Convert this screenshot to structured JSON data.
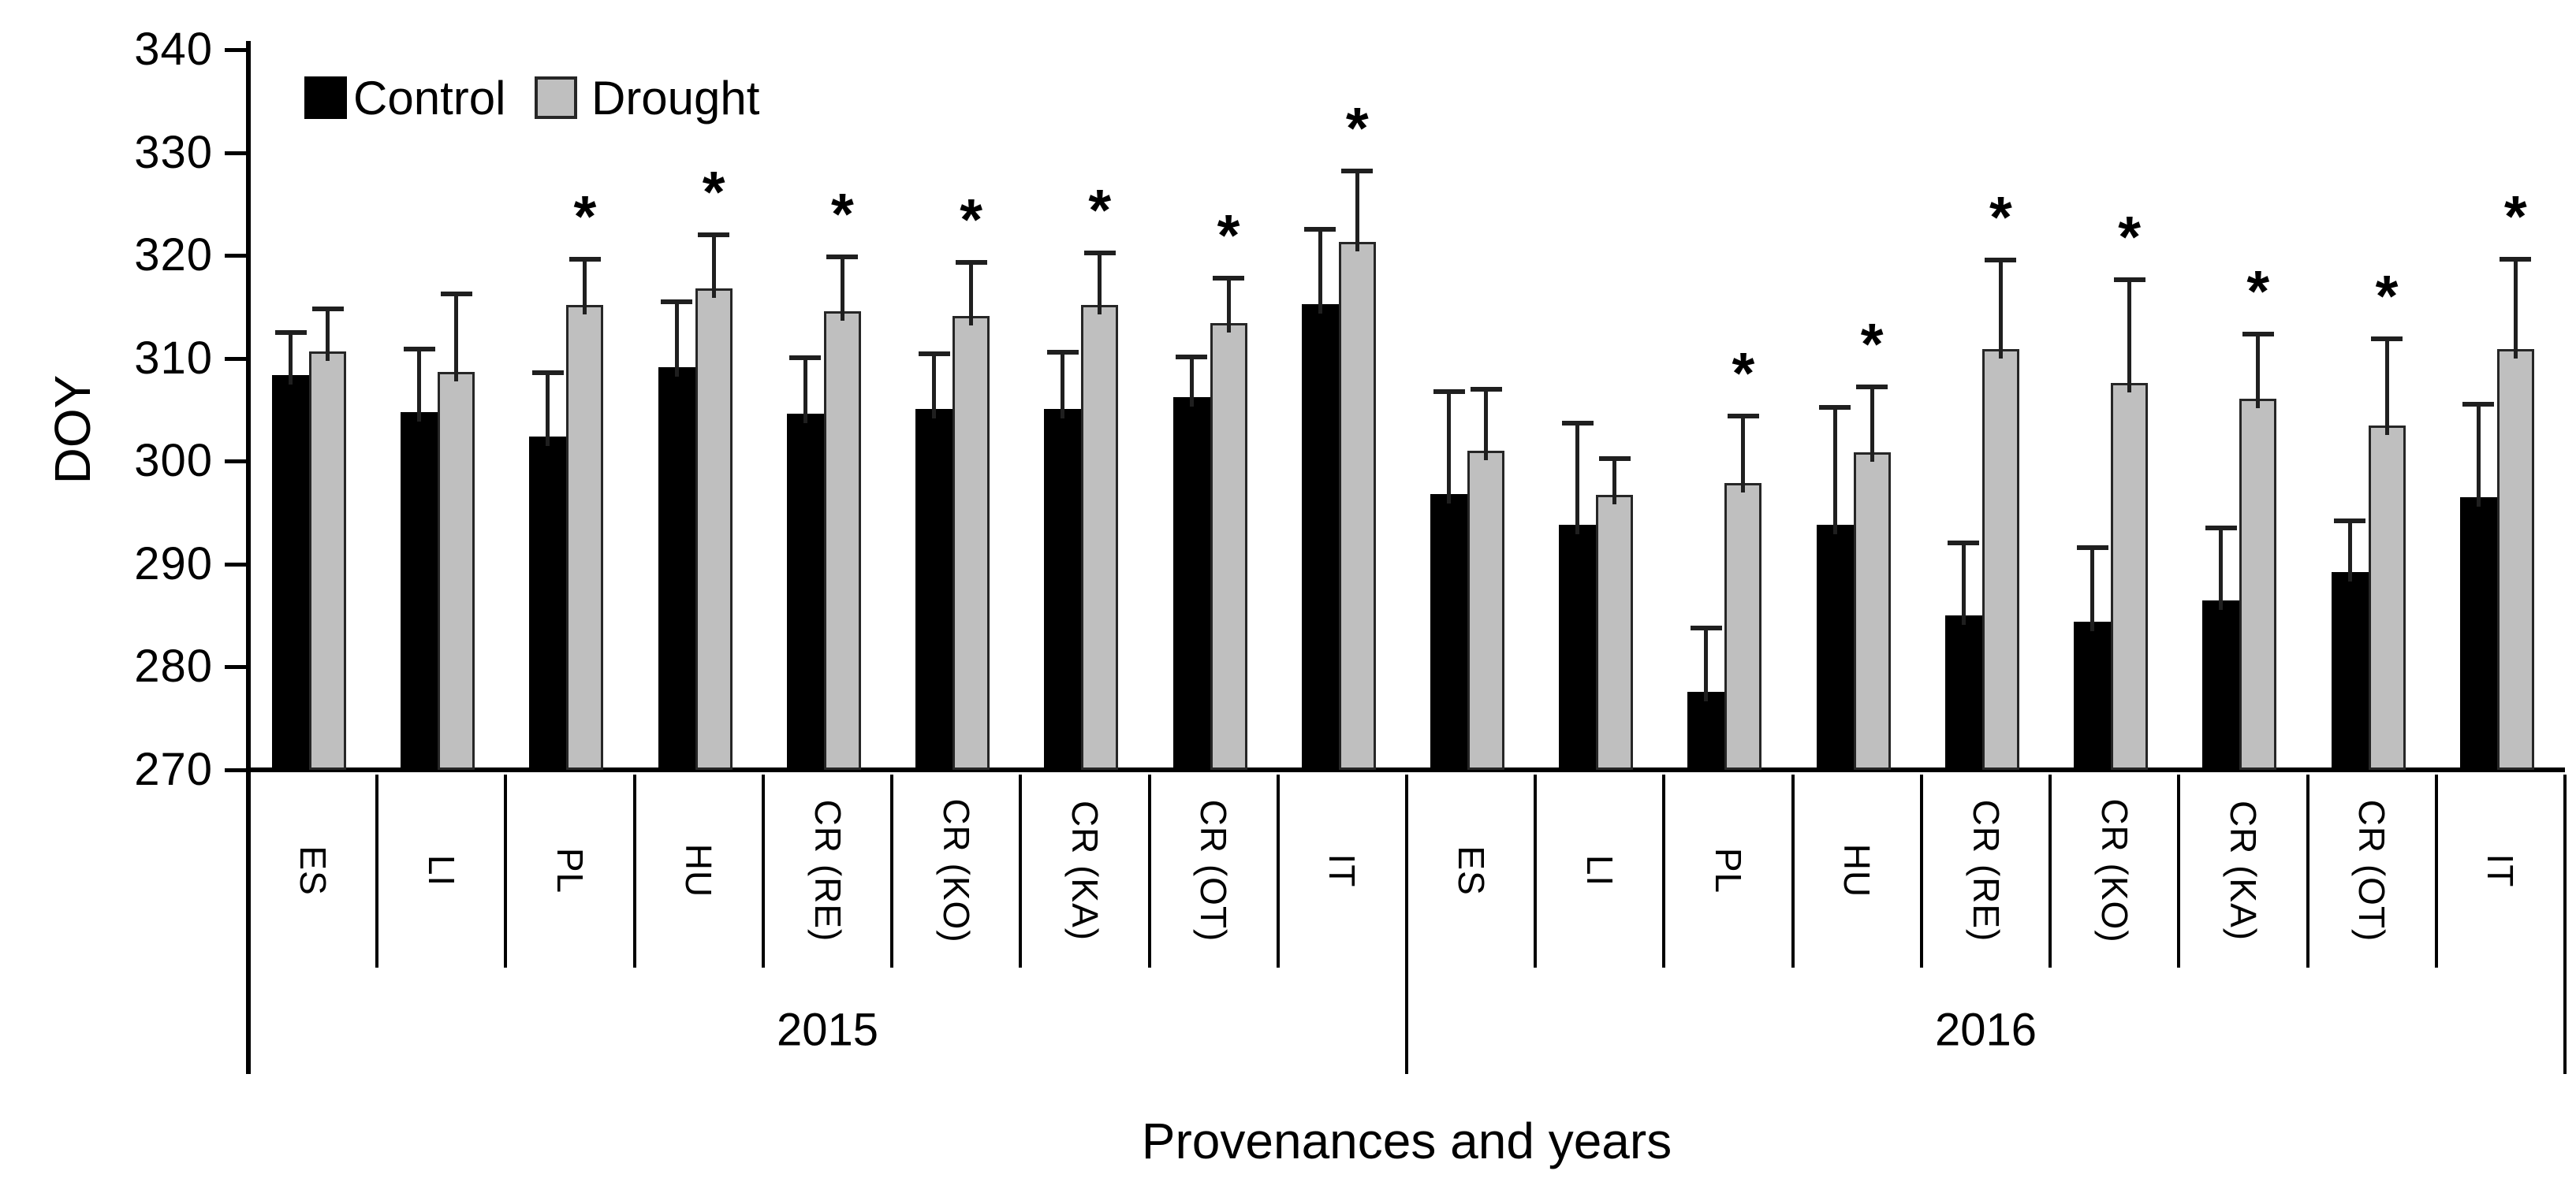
{
  "chart_data": {
    "type": "bar",
    "title": "",
    "ylabel": "DOY",
    "xlabel": "Provenances and years",
    "ylim": [
      270,
      340
    ],
    "yticks": [
      270,
      280,
      290,
      300,
      310,
      320,
      330,
      340
    ],
    "grid": false,
    "legend_position": "top-left",
    "sig_marker": "*",
    "legend": [
      {
        "name": "Control",
        "color": "#000000"
      },
      {
        "name": "Drought",
        "color": "#bfbfbf"
      }
    ],
    "years": [
      {
        "label": "2015"
      },
      {
        "label": "2016"
      }
    ],
    "categories_per_year": [
      "ES",
      "LI",
      "PL",
      "HU",
      "CR (RE)",
      "CR (KO)",
      "CR (KA)",
      "CR (OT)",
      "IT"
    ],
    "series": [
      {
        "name": "Control",
        "color": "#000000"
      },
      {
        "name": "Drought",
        "color": "#bfbfbf"
      }
    ],
    "groups": [
      {
        "year": "2015",
        "label": "ES",
        "control": 308.4,
        "control_err": 4.2,
        "drought": 310.7,
        "drought_err": 4.2,
        "significant": false
      },
      {
        "year": "2015",
        "label": "LI",
        "control": 304.8,
        "control_err": 6.2,
        "drought": 308.7,
        "drought_err": 7.6,
        "significant": false
      },
      {
        "year": "2015",
        "label": "PL",
        "control": 302.4,
        "control_err": 6.3,
        "drought": 315.2,
        "drought_err": 4.5,
        "significant": true
      },
      {
        "year": "2015",
        "label": "HU",
        "control": 309.1,
        "control_err": 6.5,
        "drought": 316.8,
        "drought_err": 5.3,
        "significant": true
      },
      {
        "year": "2015",
        "label": "CR (RE)",
        "control": 304.6,
        "control_err": 5.5,
        "drought": 314.6,
        "drought_err": 5.3,
        "significant": true
      },
      {
        "year": "2015",
        "label": "CR (KO)",
        "control": 305.1,
        "control_err": 5.4,
        "drought": 314.1,
        "drought_err": 5.3,
        "significant": true
      },
      {
        "year": "2015",
        "label": "CR (KA)",
        "control": 305.1,
        "control_err": 5.6,
        "drought": 315.2,
        "drought_err": 5.1,
        "significant": true
      },
      {
        "year": "2015",
        "label": "CR (OT)",
        "control": 306.2,
        "control_err": 4.0,
        "drought": 313.4,
        "drought_err": 4.5,
        "significant": true
      },
      {
        "year": "2015",
        "label": "IT",
        "control": 315.3,
        "control_err": 7.3,
        "drought": 321.3,
        "drought_err": 7.0,
        "significant": true
      },
      {
        "year": "2016",
        "label": "ES",
        "control": 296.8,
        "control_err": 10.0,
        "drought": 301.0,
        "drought_err": 6.1,
        "significant": false
      },
      {
        "year": "2016",
        "label": "LI",
        "control": 293.8,
        "control_err": 10.0,
        "drought": 296.7,
        "drought_err": 3.6,
        "significant": false
      },
      {
        "year": "2016",
        "label": "PL",
        "control": 277.6,
        "control_err": 6.3,
        "drought": 297.9,
        "drought_err": 6.6,
        "significant": true
      },
      {
        "year": "2016",
        "label": "HU",
        "control": 293.8,
        "control_err": 11.5,
        "drought": 300.9,
        "drought_err": 6.4,
        "significant": true
      },
      {
        "year": "2016",
        "label": "CR (RE)",
        "control": 285.0,
        "control_err": 7.1,
        "drought": 310.9,
        "drought_err": 8.7,
        "significant": true
      },
      {
        "year": "2016",
        "label": "CR (KO)",
        "control": 284.4,
        "control_err": 7.3,
        "drought": 307.6,
        "drought_err": 10.1,
        "significant": true
      },
      {
        "year": "2016",
        "label": "CR (KA)",
        "control": 286.5,
        "control_err": 7.1,
        "drought": 306.1,
        "drought_err": 6.3,
        "significant": true
      },
      {
        "year": "2016",
        "label": "CR (OT)",
        "control": 289.2,
        "control_err": 5.1,
        "drought": 303.5,
        "drought_err": 8.5,
        "significant": true
      },
      {
        "year": "2016",
        "label": "IT",
        "control": 296.5,
        "control_err": 9.1,
        "drought": 310.9,
        "drought_err": 8.8,
        "significant": true
      }
    ]
  }
}
